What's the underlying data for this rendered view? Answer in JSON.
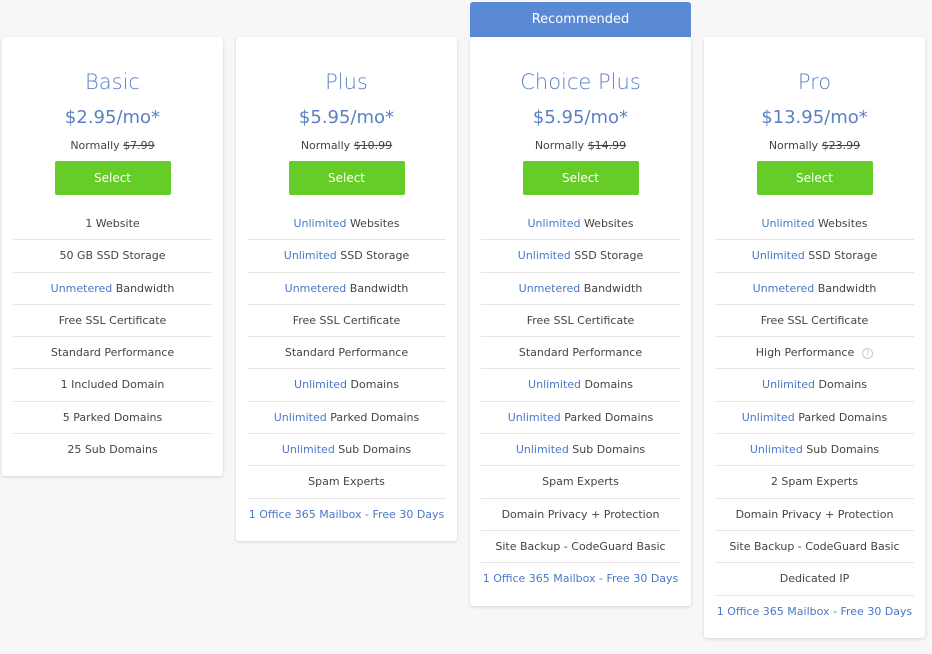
{
  "recommended_label": "Recommended",
  "colors": {
    "accent": "#5a80c4",
    "button": "#66cc27",
    "banner": "#5a8ad6"
  },
  "plans": [
    {
      "name": "Basic",
      "price": "$2.95/mo*",
      "normally_label": "Normally",
      "normally_price": "$7.99",
      "select_label": "Select",
      "features": [
        {
          "hl": "",
          "text": "1 Website"
        },
        {
          "hl": "",
          "text": "50 GB SSD Storage"
        },
        {
          "hl": "Unmetered",
          "text": " Bandwidth"
        },
        {
          "hl": "",
          "text": "Free SSL Certificate"
        },
        {
          "hl": "",
          "text": "Standard Performance"
        },
        {
          "hl": "",
          "text": "1 Included Domain"
        },
        {
          "hl": "",
          "text": "5 Parked Domains"
        },
        {
          "hl": "",
          "text": "25 Sub Domains"
        }
      ]
    },
    {
      "name": "Plus",
      "price": "$5.95/mo*",
      "normally_label": "Normally",
      "normally_price": "$10.99",
      "select_label": "Select",
      "features": [
        {
          "hl": "Unlimited",
          "text": " Websites"
        },
        {
          "hl": "Unlimited",
          "text": " SSD Storage"
        },
        {
          "hl": "Unmetered",
          "text": " Bandwidth"
        },
        {
          "hl": "",
          "text": "Free SSL Certificate"
        },
        {
          "hl": "",
          "text": "Standard Performance"
        },
        {
          "hl": "Unlimited",
          "text": " Domains"
        },
        {
          "hl": "Unlimited",
          "text": " Parked Domains"
        },
        {
          "hl": "Unlimited",
          "text": " Sub Domains"
        },
        {
          "hl": "",
          "text": "Spam Experts"
        },
        {
          "hl": "1 Office 365 Mailbox - Free 30 Days",
          "text": ""
        }
      ]
    },
    {
      "name": "Choice Plus",
      "price": "$5.95/mo*",
      "normally_label": "Normally",
      "normally_price": "$14.99",
      "select_label": "Select",
      "features": [
        {
          "hl": "Unlimited",
          "text": " Websites"
        },
        {
          "hl": "Unlimited",
          "text": " SSD Storage"
        },
        {
          "hl": "Unmetered",
          "text": " Bandwidth"
        },
        {
          "hl": "",
          "text": "Free SSL Certificate"
        },
        {
          "hl": "",
          "text": "Standard Performance"
        },
        {
          "hl": "Unlimited",
          "text": " Domains"
        },
        {
          "hl": "Unlimited",
          "text": " Parked Domains"
        },
        {
          "hl": "Unlimited",
          "text": " Sub Domains"
        },
        {
          "hl": "",
          "text": "Spam Experts"
        },
        {
          "hl": "",
          "text": "Domain Privacy + Protection"
        },
        {
          "hl": "",
          "text": "Site Backup - CodeGuard Basic"
        },
        {
          "hl": "1 Office 365 Mailbox - Free 30 Days",
          "text": ""
        }
      ]
    },
    {
      "name": "Pro",
      "price": "$13.95/mo*",
      "normally_label": "Normally",
      "normally_price": "$23.99",
      "select_label": "Select",
      "features": [
        {
          "hl": "Unlimited",
          "text": " Websites"
        },
        {
          "hl": "Unlimited",
          "text": " SSD Storage"
        },
        {
          "hl": "Unmetered",
          "text": " Bandwidth"
        },
        {
          "hl": "",
          "text": "Free SSL Certificate"
        },
        {
          "hl": "",
          "text": "High Performance",
          "info": "?"
        },
        {
          "hl": "Unlimited",
          "text": " Domains"
        },
        {
          "hl": "Unlimited",
          "text": " Parked Domains"
        },
        {
          "hl": "Unlimited",
          "text": " Sub Domains"
        },
        {
          "hl": "",
          "text": "2 Spam Experts"
        },
        {
          "hl": "",
          "text": "Domain Privacy + Protection"
        },
        {
          "hl": "",
          "text": "Site Backup - CodeGuard Basic"
        },
        {
          "hl": "",
          "text": "Dedicated IP"
        },
        {
          "hl": "1 Office 365 Mailbox - Free 30 Days",
          "text": ""
        }
      ]
    }
  ]
}
